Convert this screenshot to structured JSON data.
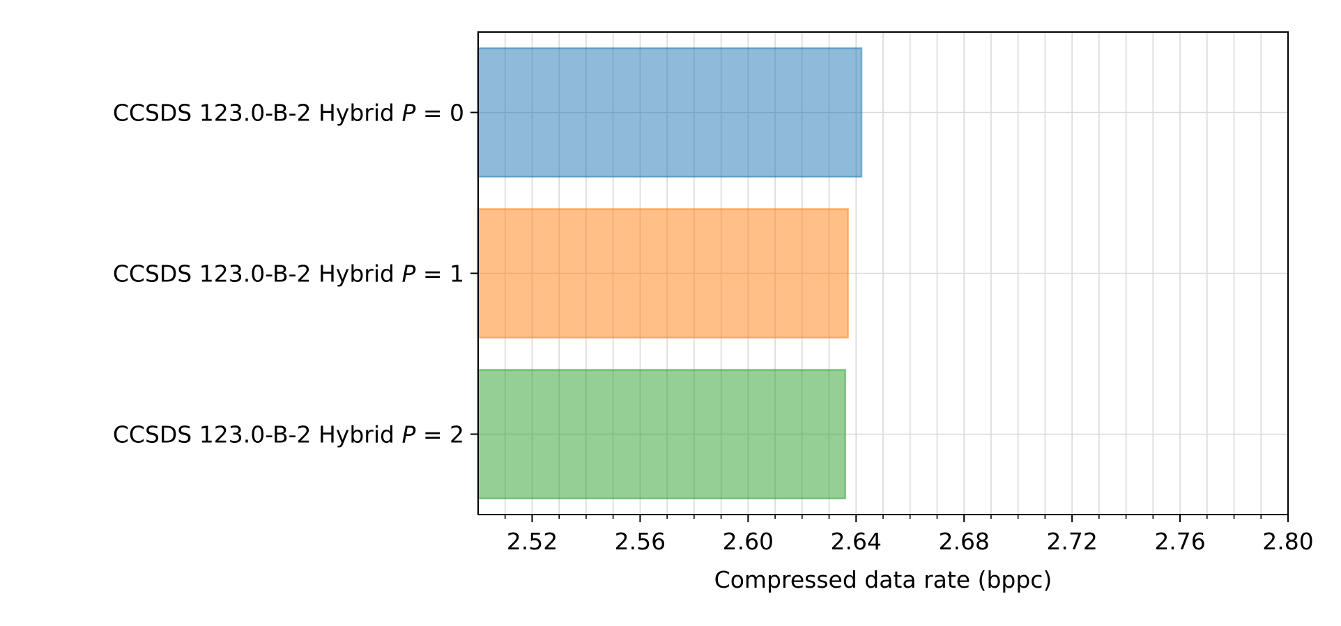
{
  "chart_data": {
    "type": "bar",
    "orientation": "horizontal",
    "categories": [
      "CCSDS 123.0-B-2 Hybrid P = 0",
      "CCSDS 123.0-B-2 Hybrid P = 1",
      "CCSDS 123.0-B-2 Hybrid P = 2"
    ],
    "category_parts": [
      {
        "prefix": "CCSDS 123.0-B-2 Hybrid ",
        "var": "P",
        "eq": " = ",
        "num": "0"
      },
      {
        "prefix": "CCSDS 123.0-B-2 Hybrid ",
        "var": "P",
        "eq": " = ",
        "num": "1"
      },
      {
        "prefix": "CCSDS 123.0-B-2 Hybrid ",
        "var": "P",
        "eq": " = ",
        "num": "2"
      }
    ],
    "values": [
      2.642,
      2.637,
      2.636
    ],
    "colors": [
      "#1f77b4",
      "#ff7f0e",
      "#2ca02c"
    ],
    "bar_alpha": 0.5,
    "title": "",
    "xlabel": "Compressed data rate (bppc)",
    "ylabel": "",
    "xlim": [
      2.5,
      2.8
    ],
    "major_ticks": [
      2.52,
      2.56,
      2.6,
      2.64,
      2.68,
      2.72,
      2.76,
      2.8
    ],
    "tick_labels": [
      "2.52",
      "2.56",
      "2.60",
      "2.64",
      "2.68",
      "2.72",
      "2.76",
      "2.80"
    ],
    "minor_tick_step": 0.01,
    "grid": "major and minor, vertical and horizontal",
    "legend": "none"
  }
}
